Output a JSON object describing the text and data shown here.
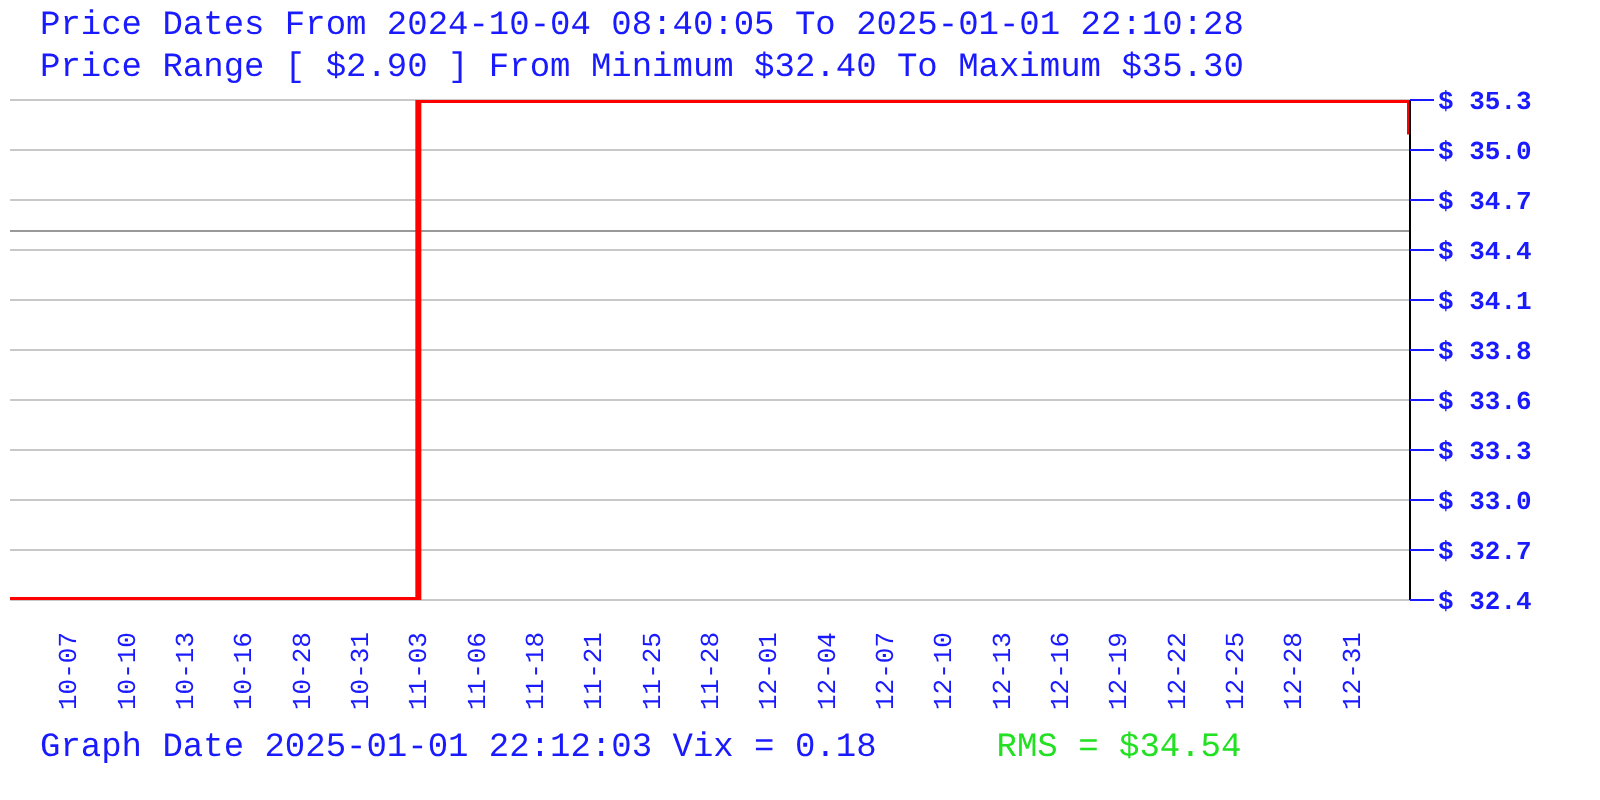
{
  "chart_data": {
    "type": "step",
    "title": "Price Dates From 2024-10-04 08:40:05 To 2025-01-01 22:10:28",
    "subtitle": "Price Range [ $2.90 ] From Minimum $32.40 To Maximum $35.30",
    "categories": [
      null,
      "10-07",
      "10-10",
      "10-13",
      "10-16",
      "10-28",
      "10-31",
      "11-03",
      "11-06",
      "11-18",
      "11-21",
      "11-25",
      "11-28",
      "12-01",
      "12-04",
      "12-07",
      "12-10",
      "12-13",
      "12-16",
      "12-19",
      "12-22",
      "12-25",
      "12-28",
      "12-31",
      null
    ],
    "series": [
      {
        "color": "#ff0000",
        "values": [
          32.4,
          32.4,
          32.4,
          32.4,
          32.4,
          32.4,
          32.4,
          35.3,
          35.3,
          35.3,
          35.3,
          35.3,
          35.3,
          35.3,
          35.3,
          35.3,
          35.3,
          35.3,
          35.3,
          35.3,
          35.3,
          35.3,
          35.3,
          35.3,
          35.1
        ]
      }
    ],
    "ylim": [
      32.4,
      35.3
    ],
    "yticks": [
      {
        "value": 32.4,
        "label": "$ 32.4"
      },
      {
        "value": 32.69,
        "label": "$ 32.7"
      },
      {
        "value": 32.98,
        "label": "$ 33.0"
      },
      {
        "value": 33.27,
        "label": "$ 33.3"
      },
      {
        "value": 33.56,
        "label": "$ 33.6"
      },
      {
        "value": 33.85,
        "label": "$ 33.8"
      },
      {
        "value": 34.14,
        "label": "$ 34.1"
      },
      {
        "value": 34.43,
        "label": "$ 34.4"
      },
      {
        "value": 34.72,
        "label": "$ 34.7"
      },
      {
        "value": 35.01,
        "label": "$ 35.0"
      },
      {
        "value": 35.3,
        "label": "$ 35.3"
      }
    ],
    "ref_lines": [
      {
        "axis": "y",
        "value": 34.54,
        "color": "#999999"
      }
    ],
    "grid": "y",
    "line_style": "solid",
    "marker": "none",
    "annotations": [
      "Graph Date 2025-01-01 22:12:03 Vix = 0.18",
      "RMS = $34.54"
    ]
  }
}
